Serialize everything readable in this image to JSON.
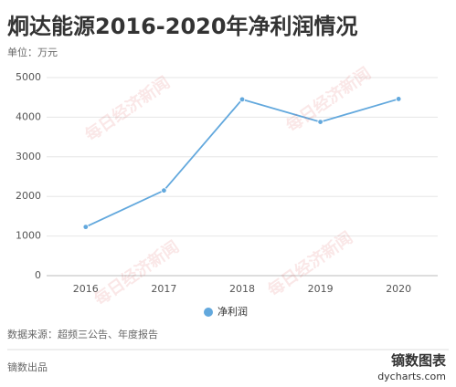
{
  "chart_data": {
    "type": "line",
    "title": "炯达能源2016-2020年净利润情况",
    "subtitle": "单位：万元",
    "categories": [
      "2016",
      "2017",
      "2018",
      "2019",
      "2020"
    ],
    "series": [
      {
        "name": "净利润",
        "color": "#62a8dd",
        "values": [
          1230,
          2150,
          4450,
          3880,
          4460
        ]
      }
    ],
    "ylim": [
      0,
      5000
    ],
    "yticks": [
      0,
      1000,
      2000,
      3000,
      4000,
      5000
    ],
    "grid": true,
    "legend": "bottom",
    "source": "数据来源：超频三公告、年度报告",
    "footer": "镝数出品",
    "logo": "镝数图表",
    "website": "dycharts.com",
    "watermark": "每日经济新闻"
  }
}
